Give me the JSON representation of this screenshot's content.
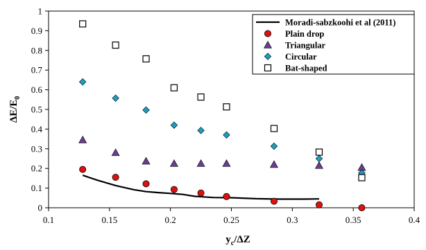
{
  "chart_data": {
    "type": "scatter",
    "xlabel": "y",
    "xlabel_sub": "c",
    "xlabel_tail": "/ΔZ",
    "ylabel": "ΔE/E",
    "ylabel_sub": "0",
    "xlim": [
      0.1,
      0.4
    ],
    "ylim": [
      0,
      1
    ],
    "x_ticks": [
      0.1,
      0.15,
      0.2,
      0.25,
      0.3,
      0.35,
      0.4
    ],
    "x_tick_labels": [
      "0.1",
      "0.15",
      "0.2",
      "0.25",
      "0.3",
      "0.35",
      "0.4"
    ],
    "y_ticks": [
      0,
      0.1,
      0.2,
      0.3,
      0.4,
      0.5,
      0.6,
      0.7,
      0.8,
      0.9,
      1
    ],
    "y_tick_labels": [
      "0",
      "0.1",
      "0.2",
      "0.3",
      "0.4",
      "0.5",
      "0.6",
      "0.7",
      "0.8",
      "0.9",
      "1"
    ],
    "grid": false,
    "legend_position": "top-right",
    "series": [
      {
        "name": "Moradi-sabzkoohi et al (2011)",
        "kind": "line",
        "color": "#000000",
        "x": [
          0.128,
          0.14,
          0.155,
          0.17,
          0.18,
          0.19,
          0.2,
          0.21,
          0.22,
          0.235,
          0.25,
          0.27,
          0.29,
          0.31,
          0.322
        ],
        "y": [
          0.165,
          0.14,
          0.113,
          0.092,
          0.082,
          0.077,
          0.073,
          0.068,
          0.058,
          0.052,
          0.051,
          0.046,
          0.044,
          0.044,
          0.045
        ]
      },
      {
        "name": "Plain drop",
        "kind": "marker",
        "marker": "circle",
        "color": "#e01010",
        "x": [
          0.128,
          0.155,
          0.18,
          0.203,
          0.225,
          0.246,
          0.285,
          0.322,
          0.357
        ],
        "y": [
          0.195,
          0.155,
          0.122,
          0.093,
          0.075,
          0.057,
          0.033,
          0.015,
          0.0
        ]
      },
      {
        "name": "Triangular",
        "kind": "marker",
        "marker": "triangle",
        "color": "#6a3d8f",
        "x": [
          0.128,
          0.155,
          0.18,
          0.203,
          0.225,
          0.246,
          0.285,
          0.322,
          0.357
        ],
        "y": [
          0.345,
          0.28,
          0.237,
          0.225,
          0.225,
          0.225,
          0.22,
          0.215,
          0.205
        ]
      },
      {
        "name": "Circular",
        "kind": "marker",
        "marker": "diamond",
        "color": "#1a9fc4",
        "x": [
          0.128,
          0.155,
          0.18,
          0.203,
          0.225,
          0.246,
          0.285,
          0.322,
          0.357
        ],
        "y": [
          0.64,
          0.557,
          0.497,
          0.42,
          0.393,
          0.37,
          0.313,
          0.25,
          0.177
        ]
      },
      {
        "name": "Bat-shaped",
        "kind": "marker",
        "marker": "square",
        "color": "#000000",
        "x": [
          0.128,
          0.155,
          0.18,
          0.203,
          0.225,
          0.246,
          0.285,
          0.322,
          0.357
        ],
        "y": [
          0.935,
          0.827,
          0.757,
          0.61,
          0.563,
          0.513,
          0.403,
          0.283,
          0.153
        ]
      }
    ]
  }
}
